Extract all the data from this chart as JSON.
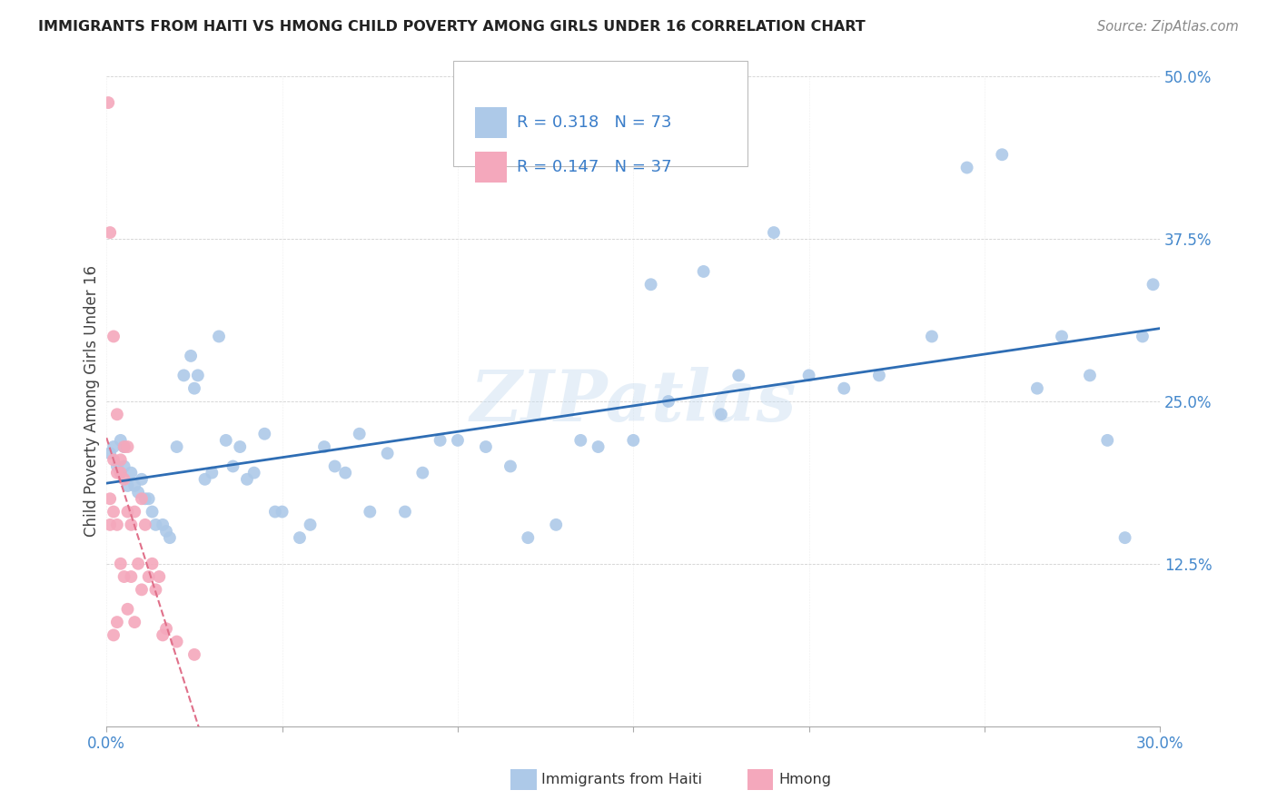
{
  "title": "IMMIGRANTS FROM HAITI VS HMONG CHILD POVERTY AMONG GIRLS UNDER 16 CORRELATION CHART",
  "source": "Source: ZipAtlas.com",
  "ylabel": "Child Poverty Among Girls Under 16",
  "xlim": [
    0.0,
    0.3
  ],
  "ylim": [
    0.0,
    0.5
  ],
  "xticks": [
    0.0,
    0.05,
    0.1,
    0.15,
    0.2,
    0.25,
    0.3
  ],
  "yticks": [
    0.0,
    0.125,
    0.25,
    0.375,
    0.5
  ],
  "ytick_labels": [
    "",
    "12.5%",
    "25.0%",
    "37.5%",
    "50.0%"
  ],
  "haiti_R": 0.318,
  "haiti_N": 73,
  "hmong_R": 0.147,
  "hmong_N": 37,
  "haiti_color": "#adc9e8",
  "hmong_color": "#f4a8bc",
  "haiti_line_color": "#2e6db4",
  "hmong_line_color": "#e0708a",
  "watermark": "ZIPatlas",
  "haiti_x": [
    0.001,
    0.002,
    0.003,
    0.004,
    0.004,
    0.005,
    0.005,
    0.006,
    0.007,
    0.008,
    0.009,
    0.01,
    0.011,
    0.012,
    0.013,
    0.014,
    0.016,
    0.017,
    0.018,
    0.02,
    0.022,
    0.024,
    0.025,
    0.026,
    0.028,
    0.03,
    0.032,
    0.034,
    0.036,
    0.038,
    0.04,
    0.042,
    0.045,
    0.048,
    0.05,
    0.055,
    0.058,
    0.062,
    0.065,
    0.068,
    0.072,
    0.075,
    0.08,
    0.085,
    0.09,
    0.095,
    0.1,
    0.108,
    0.115,
    0.12,
    0.128,
    0.135,
    0.14,
    0.15,
    0.155,
    0.16,
    0.17,
    0.175,
    0.18,
    0.19,
    0.2,
    0.21,
    0.22,
    0.235,
    0.245,
    0.255,
    0.265,
    0.272,
    0.28,
    0.285,
    0.29,
    0.295,
    0.298
  ],
  "haiti_y": [
    0.21,
    0.215,
    0.2,
    0.195,
    0.22,
    0.2,
    0.215,
    0.185,
    0.195,
    0.185,
    0.18,
    0.19,
    0.175,
    0.175,
    0.165,
    0.155,
    0.155,
    0.15,
    0.145,
    0.215,
    0.27,
    0.285,
    0.26,
    0.27,
    0.19,
    0.195,
    0.3,
    0.22,
    0.2,
    0.215,
    0.19,
    0.195,
    0.225,
    0.165,
    0.165,
    0.145,
    0.155,
    0.215,
    0.2,
    0.195,
    0.225,
    0.165,
    0.21,
    0.165,
    0.195,
    0.22,
    0.22,
    0.215,
    0.2,
    0.145,
    0.155,
    0.22,
    0.215,
    0.22,
    0.34,
    0.25,
    0.35,
    0.24,
    0.27,
    0.38,
    0.27,
    0.26,
    0.27,
    0.3,
    0.43,
    0.44,
    0.26,
    0.3,
    0.27,
    0.22,
    0.145,
    0.3,
    0.34
  ],
  "hmong_x": [
    0.0005,
    0.001,
    0.001,
    0.001,
    0.002,
    0.002,
    0.002,
    0.002,
    0.003,
    0.003,
    0.003,
    0.003,
    0.004,
    0.004,
    0.004,
    0.005,
    0.005,
    0.005,
    0.006,
    0.006,
    0.006,
    0.007,
    0.007,
    0.008,
    0.008,
    0.009,
    0.01,
    0.01,
    0.011,
    0.012,
    0.013,
    0.014,
    0.015,
    0.016,
    0.017,
    0.02,
    0.025
  ],
  "hmong_y": [
    0.48,
    0.38,
    0.175,
    0.155,
    0.3,
    0.205,
    0.165,
    0.07,
    0.24,
    0.195,
    0.155,
    0.08,
    0.205,
    0.195,
    0.125,
    0.215,
    0.19,
    0.115,
    0.215,
    0.165,
    0.09,
    0.155,
    0.115,
    0.165,
    0.08,
    0.125,
    0.175,
    0.105,
    0.155,
    0.115,
    0.125,
    0.105,
    0.115,
    0.07,
    0.075,
    0.065,
    0.055
  ]
}
